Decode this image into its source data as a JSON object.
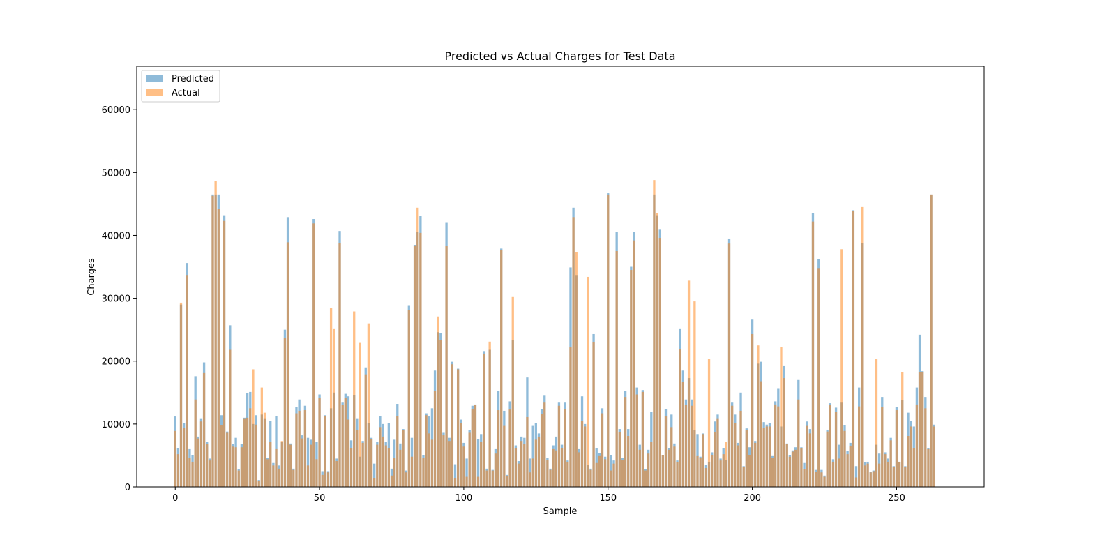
{
  "chart_data": {
    "type": "bar",
    "title": "Predicted vs Actual Charges for Test Data",
    "xlabel": "Sample",
    "ylabel": "Charges",
    "xlim": [
      -13.35,
      280.35
    ],
    "ylim": [
      0,
      66900
    ],
    "x_ticks": [
      0,
      50,
      100,
      150,
      200,
      250
    ],
    "y_ticks": [
      0,
      10000,
      20000,
      30000,
      40000,
      50000,
      60000
    ],
    "grid": false,
    "legend_position": "top-left",
    "x": "sample index 0-267 (268 samples)",
    "series": [
      {
        "name": "Predicted",
        "color": "#1f77b4",
        "opacity": 0.5,
        "values": [
          11200,
          6200,
          29000,
          10200,
          35600,
          6000,
          5000,
          17600,
          8000,
          10800,
          19800,
          7200,
          4500,
          46500,
          46500,
          46500,
          11400,
          43200,
          8800,
          25700,
          6800,
          7800,
          2800,
          6800,
          11000,
          14900,
          15100,
          10000,
          11400,
          1100,
          11500,
          10800,
          4600,
          10500,
          3800,
          11300,
          3400,
          7200,
          25000,
          42900,
          6900,
          2900,
          12700,
          13900,
          8200,
          12900,
          7800,
          7500,
          42600,
          7100,
          14700,
          2500,
          11400,
          2500,
          12500,
          15000,
          4500,
          40700,
          13400,
          14800,
          14400,
          7400,
          14600,
          10800,
          4800,
          7300,
          19000,
          10200,
          7800,
          3700,
          7100,
          11300,
          10000,
          7200,
          10200,
          2900,
          7500,
          13200,
          6900,
          9200,
          2600,
          28900,
          7800,
          38500,
          40600,
          43100,
          5000,
          11700,
          11200,
          12500,
          18500,
          24600,
          24500,
          8600,
          42100,
          7800,
          19900,
          3600,
          18800,
          10700,
          7000,
          4500,
          9000,
          12900,
          13100,
          7600,
          8400,
          21600,
          2900,
          21800,
          2700,
          6000,
          15300,
          37900,
          12100,
          1900,
          13600,
          23300,
          6600,
          4100,
          8000,
          7800,
          17400,
          4500,
          9700,
          10100,
          8500,
          12400,
          14500,
          4600,
          2900,
          6600,
          8000,
          13400,
          6700,
          13400,
          4200,
          34900,
          44400,
          33700,
          6000,
          14400,
          10000,
          3500,
          2900,
          24300,
          6100,
          5400,
          12500,
          4800,
          46700,
          5100,
          4200,
          40500,
          9200,
          4600,
          15200,
          9200,
          35000,
          40500,
          15800,
          6700,
          15400,
          2800,
          5900,
          11900,
          46500,
          43200,
          40900,
          5100,
          12400,
          6200,
          11500,
          6900,
          4200,
          25200,
          18500,
          13900,
          17300,
          13900,
          9000,
          8400,
          4800,
          8500,
          3500,
          4000,
          5500,
          10400,
          11500,
          4500,
          6100,
          4300,
          39500,
          13400,
          11500,
          7000,
          15000,
          3300,
          9300,
          6300,
          26600,
          7300,
          19600,
          19900,
          10300,
          9900,
          10100,
          4900,
          13600,
          15700,
          9600,
          19200,
          6900,
          5100,
          5800,
          6300,
          17000,
          6300,
          3800,
          10400,
          9200,
          43600,
          2700,
          36200,
          2700,
          1800,
          9100,
          13300,
          4400,
          12600,
          6700,
          13400,
          9800,
          5700,
          7000,
          44000,
          3300,
          15800,
          38800,
          3900,
          4000,
          2400,
          2600,
          6700,
          5300,
          14300,
          5500,
          4500,
          7800,
          3300,
          12700,
          4000,
          13800,
          3300,
          11800,
          10500,
          9600,
          15800,
          24200,
          18400,
          14300,
          6200,
          46500,
          9900
        ]
      },
      {
        "name": "Actual",
        "color": "#ff7f0e",
        "opacity": 0.5,
        "values": [
          8900,
          5200,
          29300,
          9400,
          33700,
          4600,
          4000,
          13900,
          7700,
          10400,
          18100,
          6800,
          4200,
          46300,
          48700,
          44200,
          9800,
          42300,
          8600,
          21800,
          6400,
          6300,
          2600,
          6300,
          10800,
          11000,
          12500,
          18700,
          9900,
          900,
          15800,
          11800,
          4400,
          7200,
          3400,
          6000,
          2900,
          7300,
          23700,
          38900,
          6700,
          2700,
          11700,
          12100,
          7700,
          12200,
          3400,
          6700,
          41900,
          4400,
          14100,
          1900,
          11300,
          2300,
          28400,
          25200,
          4100,
          38800,
          13000,
          14200,
          10700,
          6200,
          27900,
          9100,
          22900,
          7000,
          17900,
          26000,
          7600,
          1400,
          6700,
          9500,
          8000,
          6600,
          6100,
          1800,
          4600,
          11300,
          5900,
          9000,
          2300,
          28100,
          4800,
          38400,
          44400,
          40400,
          4600,
          11400,
          8500,
          7500,
          15200,
          27100,
          23300,
          8200,
          38300,
          7300,
          19500,
          1400,
          18700,
          10100,
          6400,
          1600,
          8600,
          12400,
          13000,
          1600,
          7200,
          21200,
          2600,
          23100,
          2600,
          5300,
          12200,
          37700,
          9700,
          1700,
          12300,
          30200,
          6200,
          3700,
          7300,
          6800,
          11100,
          2300,
          4500,
          7500,
          8000,
          11600,
          13400,
          4300,
          2700,
          6000,
          5800,
          12900,
          6200,
          12400,
          4000,
          22200,
          42900,
          37300,
          5500,
          10500,
          9600,
          33400,
          2700,
          23000,
          3800,
          4900,
          11700,
          4400,
          46500,
          2600,
          3700,
          37500,
          8700,
          4300,
          14300,
          8100,
          34500,
          39200,
          14700,
          5900,
          15100,
          2600,
          5300,
          7100,
          48800,
          43600,
          39600,
          5000,
          11300,
          5900,
          9500,
          6400,
          3900,
          21900,
          16700,
          13000,
          32800,
          12900,
          29500,
          4900,
          4600,
          8400,
          3000,
          20300,
          5100,
          8700,
          10800,
          4200,
          5200,
          7200,
          38700,
          12900,
          10100,
          6600,
          12100,
          3200,
          9000,
          5100,
          24300,
          7000,
          22500,
          16800,
          9400,
          9600,
          9600,
          4600,
          13100,
          12800,
          22200,
          17300,
          6800,
          4800,
          5600,
          5900,
          13900,
          6100,
          2800,
          9700,
          8500,
          42200,
          2400,
          34800,
          2300,
          1600,
          8800,
          13000,
          4000,
          11900,
          4500,
          37800,
          8900,
          5200,
          6500,
          43900,
          1500,
          12800,
          44500,
          3400,
          3700,
          2300,
          2500,
          20300,
          3700,
          12700,
          5200,
          4000,
          7400,
          3200,
          12200,
          4000,
          18300,
          3100,
          8100,
          9600,
          6100,
          13100,
          18200,
          18300,
          12500,
          6000,
          46500,
          9600
        ]
      }
    ]
  }
}
